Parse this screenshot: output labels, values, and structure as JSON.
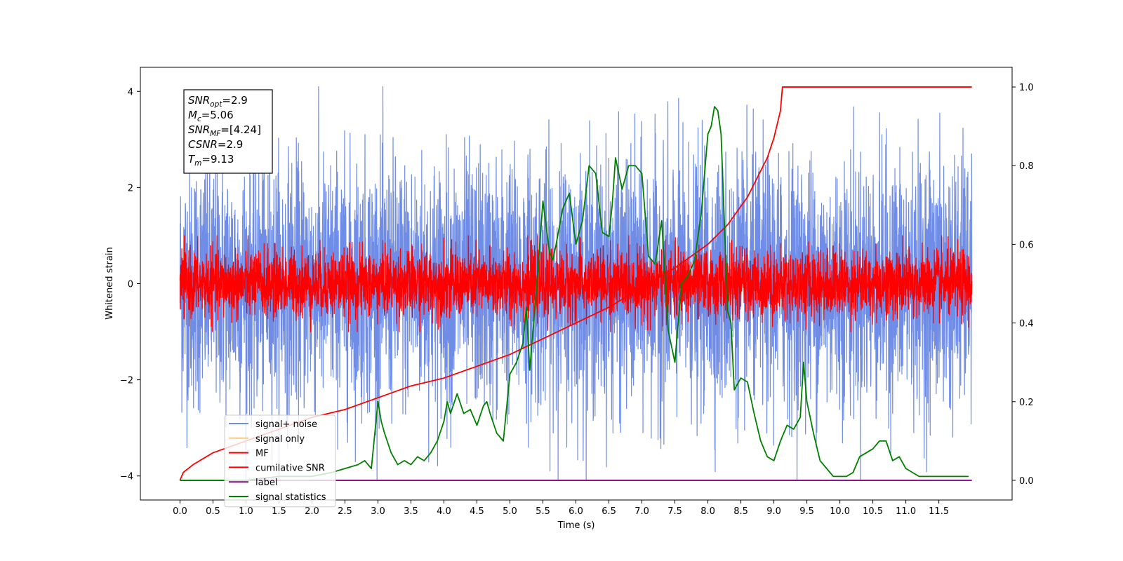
{
  "chart_data": {
    "type": "line",
    "xlabel": "Time (s)",
    "ylabel": "Whitened strain",
    "xlim": [
      -0.6,
      12.61
    ],
    "ylim_left": [
      -4.5,
      4.5
    ],
    "ylim_right": [
      -0.05,
      1.05
    ],
    "x_ticks": [
      0.0,
      0.5,
      1.0,
      1.5,
      2.0,
      2.5,
      3.0,
      3.5,
      4.0,
      4.5,
      5.0,
      5.5,
      6.0,
      6.5,
      7.0,
      7.5,
      8.0,
      8.5,
      9.0,
      9.5,
      10.0,
      10.5,
      11.0,
      11.5
    ],
    "x_tick_labels": [
      "0.0",
      "0.5",
      "1.0",
      "1.5",
      "2.0",
      "2.5",
      "3.0",
      "3.5",
      "4.0",
      "4.5",
      "5.0",
      "5.5",
      "6.0",
      "6.5",
      "7.0",
      "7.5",
      "8.0",
      "8.5",
      "9.0",
      "9.5",
      "10.0",
      "10.5",
      "11.0",
      "11.5"
    ],
    "y_ticks_left": [
      -4,
      -2,
      0,
      2,
      4
    ],
    "y_tick_labels_left": [
      "−4",
      "−2",
      "0",
      "2",
      "4"
    ],
    "y_ticks_right": [
      0.0,
      0.2,
      0.4,
      0.6,
      0.8,
      1.0
    ],
    "y_tick_labels_right": [
      "0.0",
      "0.2",
      "0.4",
      "0.6",
      "0.8",
      "1.0"
    ],
    "grid": false,
    "legend_position": "lower-left",
    "annotation": [
      {
        "main": "SNR",
        "sub": "opt",
        "value": "=2.9"
      },
      {
        "main": "M",
        "sub": "c",
        "value": "=5.06"
      },
      {
        "main": "SNR",
        "sub": "MF",
        "value": "=[4.24]"
      },
      {
        "main": "CSNR",
        "sub": "",
        "value": "=2.9"
      },
      {
        "main": "T",
        "sub": "m",
        "value": "=9.13"
      }
    ],
    "series": [
      {
        "name": "signal+ noise",
        "axis": "left",
        "color": "#6f8ce6",
        "kind": "noise",
        "x_range": [
          0.0,
          12.0
        ],
        "amplitude_typical": 1.3,
        "amplitude_peak": 4.1,
        "mean": 0.0
      },
      {
        "name": "signal only",
        "axis": "left",
        "color": "#ffc87a",
        "kind": "hidden",
        "x_range": [
          0.0,
          12.0
        ],
        "values_constant": 0.0
      },
      {
        "name": "MF",
        "axis": "left",
        "color": "#ff0000",
        "kind": "noise",
        "x_range": [
          0.0,
          12.0
        ],
        "amplitude_typical": 0.35,
        "amplitude_peak": 1.0,
        "mean": 0.0
      },
      {
        "name": "cumilative SNR",
        "axis": "right",
        "color": "#ff0000",
        "kind": "line",
        "x": [
          0.0,
          0.05,
          0.2,
          0.5,
          1.0,
          1.5,
          2.0,
          2.5,
          3.0,
          3.5,
          4.0,
          4.5,
          5.0,
          5.5,
          6.0,
          6.5,
          7.0,
          7.5,
          8.0,
          8.3,
          8.6,
          8.9,
          9.0,
          9.1,
          9.13,
          12.0
        ],
        "values": [
          0.0,
          0.02,
          0.04,
          0.07,
          0.1,
          0.13,
          0.16,
          0.18,
          0.21,
          0.24,
          0.26,
          0.29,
          0.32,
          0.36,
          0.4,
          0.44,
          0.49,
          0.54,
          0.6,
          0.65,
          0.72,
          0.82,
          0.87,
          0.94,
          1.0,
          1.0
        ]
      },
      {
        "name": "label",
        "axis": "right",
        "color": "#800080",
        "kind": "line",
        "x": [
          0.0,
          12.0
        ],
        "values": [
          0.0,
          0.0
        ]
      },
      {
        "name": "signal statistics",
        "axis": "right",
        "color": "#008000",
        "kind": "line",
        "x": [
          0.0,
          0.5,
          1.0,
          1.5,
          2.0,
          2.3,
          2.5,
          2.7,
          2.8,
          2.9,
          3.0,
          3.05,
          3.1,
          3.2,
          3.3,
          3.4,
          3.5,
          3.6,
          3.7,
          3.8,
          3.9,
          4.0,
          4.05,
          4.1,
          4.2,
          4.3,
          4.4,
          4.5,
          4.6,
          4.65,
          4.7,
          4.8,
          4.9,
          5.0,
          5.1,
          5.2,
          5.25,
          5.3,
          5.4,
          5.5,
          5.6,
          5.65,
          5.7,
          5.8,
          5.9,
          6.0,
          6.1,
          6.2,
          6.3,
          6.4,
          6.5,
          6.55,
          6.6,
          6.7,
          6.8,
          6.9,
          7.0,
          7.1,
          7.2,
          7.3,
          7.4,
          7.45,
          7.5,
          7.6,
          7.7,
          7.8,
          7.9,
          8.0,
          8.05,
          8.1,
          8.15,
          8.2,
          8.3,
          8.35,
          8.4,
          8.5,
          8.6,
          8.7,
          8.8,
          8.9,
          9.0,
          9.1,
          9.2,
          9.3,
          9.4,
          9.45,
          9.5,
          9.6,
          9.7,
          9.8,
          9.9,
          10.0,
          10.1,
          10.2,
          10.3,
          10.4,
          10.5,
          10.6,
          10.7,
          10.8,
          10.9,
          11.0,
          11.1,
          11.2,
          11.3,
          11.4,
          11.5,
          11.6,
          11.7,
          11.8,
          11.9,
          11.95
        ],
        "values": [
          0.0,
          0.0,
          0.0,
          0.01,
          0.01,
          0.02,
          0.03,
          0.04,
          0.05,
          0.03,
          0.2,
          0.15,
          0.12,
          0.07,
          0.04,
          0.05,
          0.04,
          0.06,
          0.05,
          0.07,
          0.1,
          0.15,
          0.2,
          0.17,
          0.22,
          0.17,
          0.18,
          0.14,
          0.19,
          0.2,
          0.17,
          0.12,
          0.1,
          0.27,
          0.3,
          0.35,
          0.44,
          0.28,
          0.48,
          0.71,
          0.58,
          0.56,
          0.6,
          0.69,
          0.73,
          0.6,
          0.66,
          0.8,
          0.78,
          0.63,
          0.62,
          0.7,
          0.82,
          0.74,
          0.8,
          0.8,
          0.78,
          0.57,
          0.55,
          0.66,
          0.38,
          0.34,
          0.3,
          0.5,
          0.52,
          0.56,
          0.68,
          0.88,
          0.9,
          0.95,
          0.94,
          0.88,
          0.43,
          0.4,
          0.23,
          0.26,
          0.25,
          0.17,
          0.1,
          0.06,
          0.05,
          0.1,
          0.14,
          0.13,
          0.16,
          0.3,
          0.2,
          0.12,
          0.05,
          0.03,
          0.01,
          0.01,
          0.01,
          0.02,
          0.06,
          0.07,
          0.08,
          0.1,
          0.1,
          0.05,
          0.06,
          0.03,
          0.02,
          0.01,
          0.01,
          0.01,
          0.01,
          0.01,
          0.01,
          0.01,
          0.01,
          0.01
        ]
      }
    ]
  }
}
